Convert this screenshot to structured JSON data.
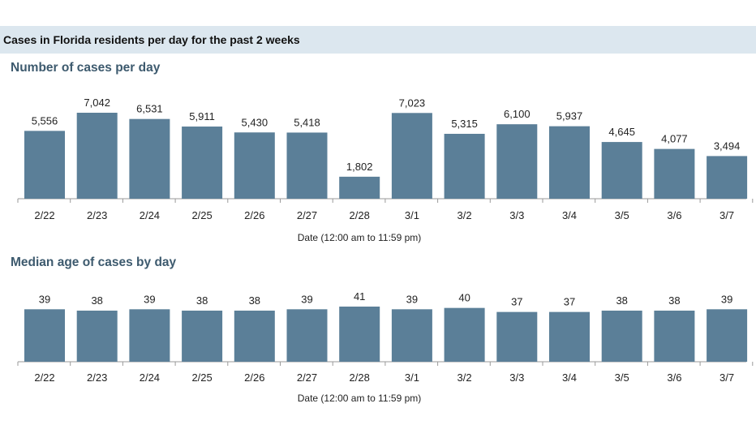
{
  "header": {
    "title": "Cases in Florida residents per day for the past 2 weeks"
  },
  "colors": {
    "bar": "#5b7f98",
    "axis": "#9a9a9a",
    "header_band": "#dce7ef",
    "chart_title": "#3d5a6e"
  },
  "chart_data": [
    {
      "type": "bar",
      "title": "Number of cases per day",
      "xlabel": "Date (12:00 am to 11:59 pm)",
      "ylabel": "",
      "categories": [
        "2/22",
        "2/23",
        "2/24",
        "2/25",
        "2/26",
        "2/27",
        "2/28",
        "3/1",
        "3/2",
        "3/3",
        "3/4",
        "3/5",
        "3/6",
        "3/7"
      ],
      "values": [
        5556,
        7042,
        6531,
        5911,
        5430,
        5418,
        1802,
        7023,
        5315,
        6100,
        5937,
        4645,
        4077,
        3494
      ],
      "value_labels": [
        "5,556",
        "7,042",
        "6,531",
        "5,911",
        "5,430",
        "5,418",
        "1,802",
        "7,023",
        "5,315",
        "6,100",
        "5,937",
        "4,645",
        "4,077",
        "3,494"
      ],
      "ylim": [
        0,
        7042
      ],
      "grid": false,
      "legend": "none"
    },
    {
      "type": "bar",
      "title": "Median age of cases by day",
      "xlabel": "Date (12:00 am to 11:59 pm)",
      "ylabel": "",
      "categories": [
        "2/22",
        "2/23",
        "2/24",
        "2/25",
        "2/26",
        "2/27",
        "2/28",
        "3/1",
        "3/2",
        "3/3",
        "3/4",
        "3/5",
        "3/6",
        "3/7"
      ],
      "values": [
        39,
        38,
        39,
        38,
        38,
        39,
        41,
        39,
        40,
        37,
        37,
        38,
        38,
        39
      ],
      "value_labels": [
        "39",
        "38",
        "39",
        "38",
        "38",
        "39",
        "41",
        "39",
        "40",
        "37",
        "37",
        "38",
        "38",
        "39"
      ],
      "ylim": [
        0,
        41
      ],
      "grid": false,
      "legend": "none"
    }
  ]
}
